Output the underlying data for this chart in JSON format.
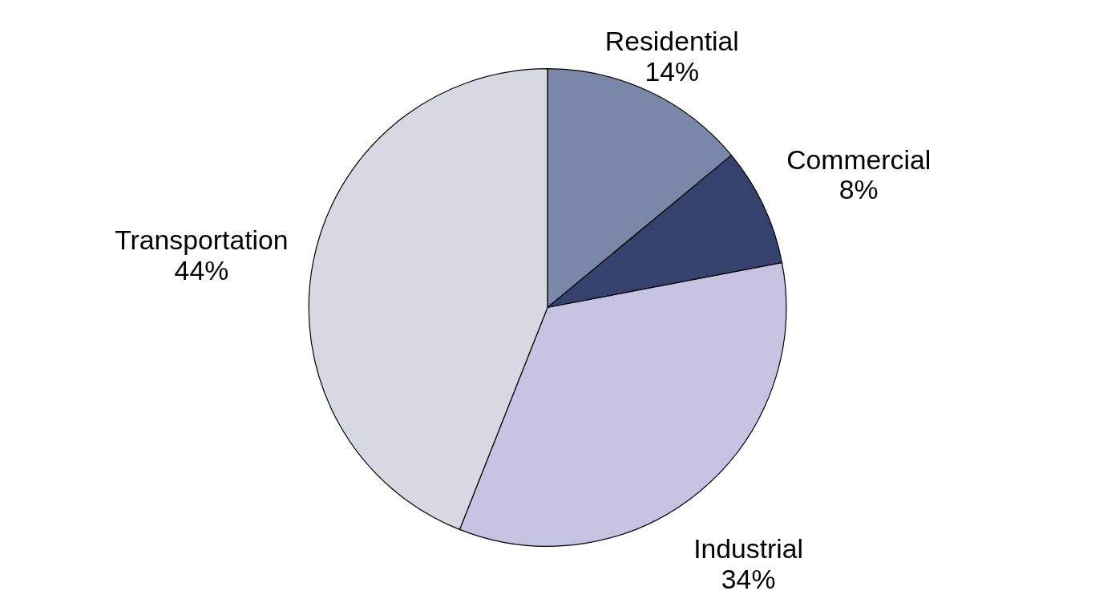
{
  "chart_data": {
    "type": "pie",
    "categories": [
      "Residential",
      "Commercial",
      "Industrial",
      "Transportation"
    ],
    "values": [
      14,
      8,
      34,
      44
    ],
    "value_labels": [
      "14%",
      "8%",
      "34%",
      "44%"
    ],
    "colors": [
      "#7b87a8",
      "#36426e",
      "#c6c3e2",
      "#d6d8e2"
    ]
  }
}
